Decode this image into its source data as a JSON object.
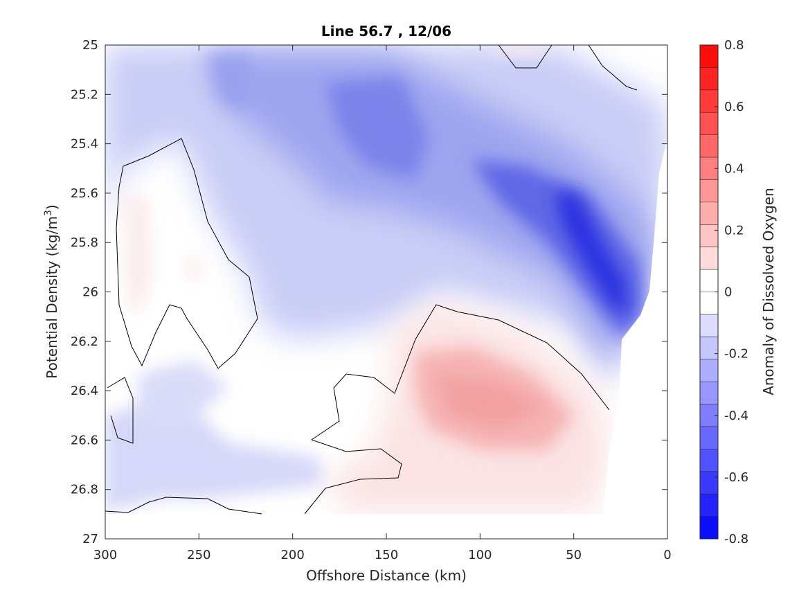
{
  "chart_data": {
    "type": "contour",
    "title": "Line 56.7 , 12/06",
    "xlabel": "Offshore Distance (km)",
    "ylabel": "Potential Density (kg/m",
    "ylabel_sup": "3",
    "ylabel_close": ")",
    "colorbar_label": "Anomaly of Dissolved Oxygen",
    "xlim": [
      300,
      0
    ],
    "ylim": [
      25,
      27
    ],
    "x_reversed": true,
    "y_reversed": true,
    "x_ticks": [
      300,
      250,
      200,
      150,
      100,
      50,
      0
    ],
    "x_tick_labels": [
      "300",
      "250",
      "200",
      "150",
      "100",
      "50",
      "0"
    ],
    "y_ticks": [
      25,
      25.2,
      25.4,
      25.6,
      25.8,
      26,
      26.2,
      26.4,
      26.6,
      26.8,
      27
    ],
    "y_tick_labels": [
      "25",
      "25.2",
      "25.4",
      "25.6",
      "25.8",
      "26",
      "26.2",
      "26.4",
      "26.6",
      "26.8",
      "27"
    ],
    "colorbar_range": [
      -0.8,
      0.8
    ],
    "colorbar_ticks": [
      0.8,
      0.6,
      0.4,
      0.2,
      0,
      -0.2,
      -0.4,
      -0.6,
      -0.8
    ],
    "colorbar_tick_labels": [
      "0.8",
      "0.6",
      "0.4",
      "0.2",
      "0",
      "-0.2",
      "-0.4",
      "-0.6",
      "-0.8"
    ],
    "colorbar_levels": 22,
    "colormap": {
      "negative": "#0000ff",
      "zero": "#ffffff",
      "positive": "#ff0000"
    },
    "zero_contour_color": "#000000",
    "features": [
      {
        "name": "negative-core",
        "x": 40,
        "y": 25.95,
        "value": -0.65
      },
      {
        "name": "negative-band",
        "x": 90,
        "y": 25.6,
        "value": -0.4
      },
      {
        "name": "negative-upper",
        "x": 155,
        "y": 25.35,
        "value": -0.35
      },
      {
        "name": "negative-mid",
        "x": 230,
        "y": 25.15,
        "value": -0.25
      },
      {
        "name": "positive-core",
        "x": 95,
        "y": 26.5,
        "value": 0.25
      },
      {
        "name": "positive-left",
        "x": 280,
        "y": 25.85,
        "value": 0.05
      }
    ]
  }
}
